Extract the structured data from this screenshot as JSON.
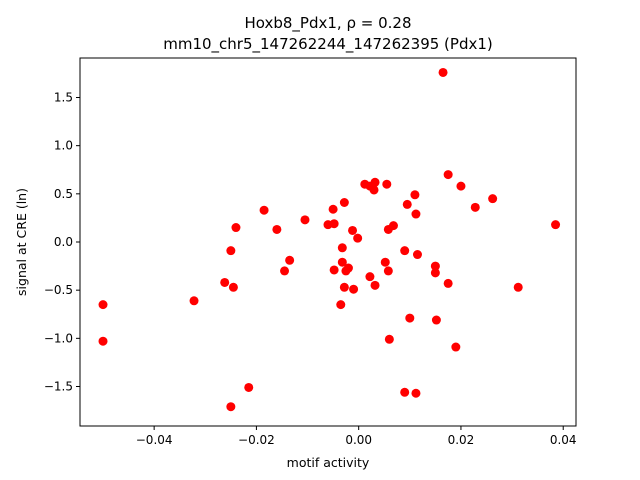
{
  "chart_data": {
    "type": "scatter",
    "title_line1": "Hoxb8_Pdx1, ρ = 0.28",
    "title_line2": "mm10_chr5_147262244_147262395 (Pdx1)",
    "xlabel": "motif activity",
    "ylabel": "signal at CRE (ln)",
    "xlim": [
      -0.0545,
      0.0425
    ],
    "ylim": [
      -1.91,
      1.91
    ],
    "xticks": [
      -0.04,
      -0.02,
      0.0,
      0.02,
      0.04
    ],
    "xtick_labels": [
      "−0.04",
      "−0.02",
      "0.00",
      "0.02",
      "0.04"
    ],
    "yticks": [
      -1.5,
      -1.0,
      -0.5,
      0.0,
      0.5,
      1.0,
      1.5
    ],
    "ytick_labels": [
      "−1.5",
      "−1.0",
      "−0.5",
      "0.0",
      "0.5",
      "1.0",
      "1.5"
    ],
    "grid": false,
    "marker_color": "#ff0000",
    "points": [
      {
        "x": -0.05,
        "y": -0.65
      },
      {
        "x": -0.05,
        "y": -1.03
      },
      {
        "x": -0.0322,
        "y": -0.61
      },
      {
        "x": -0.0262,
        "y": -0.42
      },
      {
        "x": -0.025,
        "y": -0.09
      },
      {
        "x": -0.025,
        "y": -1.71
      },
      {
        "x": -0.0245,
        "y": -0.47
      },
      {
        "x": -0.024,
        "y": 0.15
      },
      {
        "x": -0.0215,
        "y": -1.51
      },
      {
        "x": -0.0185,
        "y": 0.33
      },
      {
        "x": -0.016,
        "y": 0.13
      },
      {
        "x": -0.0145,
        "y": -0.3
      },
      {
        "x": -0.0135,
        "y": -0.19
      },
      {
        "x": -0.0105,
        "y": 0.23
      },
      {
        "x": -0.006,
        "y": 0.18
      },
      {
        "x": -0.005,
        "y": 0.34
      },
      {
        "x": -0.0048,
        "y": 0.19
      },
      {
        "x": -0.0048,
        "y": -0.29
      },
      {
        "x": -0.0035,
        "y": -0.65
      },
      {
        "x": -0.0032,
        "y": -0.06
      },
      {
        "x": -0.0032,
        "y": -0.21
      },
      {
        "x": -0.0028,
        "y": 0.41
      },
      {
        "x": -0.0028,
        "y": -0.47
      },
      {
        "x": -0.0025,
        "y": -0.3
      },
      {
        "x": -0.002,
        "y": -0.27
      },
      {
        "x": -0.0012,
        "y": 0.12
      },
      {
        "x": -0.001,
        "y": -0.49
      },
      {
        "x": -0.0002,
        "y": 0.04
      },
      {
        "x": 0.0012,
        "y": 0.6
      },
      {
        "x": 0.0022,
        "y": 0.58
      },
      {
        "x": 0.0022,
        "y": -0.36
      },
      {
        "x": 0.003,
        "y": 0.54
      },
      {
        "x": 0.0032,
        "y": 0.62
      },
      {
        "x": 0.0032,
        "y": -0.45
      },
      {
        "x": 0.0052,
        "y": -0.21
      },
      {
        "x": 0.0055,
        "y": 0.6
      },
      {
        "x": 0.0058,
        "y": 0.13
      },
      {
        "x": 0.0058,
        "y": -0.3
      },
      {
        "x": 0.006,
        "y": -1.01
      },
      {
        "x": 0.0068,
        "y": 0.17
      },
      {
        "x": 0.009,
        "y": -0.09
      },
      {
        "x": 0.009,
        "y": -1.56
      },
      {
        "x": 0.0095,
        "y": 0.39
      },
      {
        "x": 0.01,
        "y": -0.79
      },
      {
        "x": 0.011,
        "y": 0.49
      },
      {
        "x": 0.0112,
        "y": 0.29
      },
      {
        "x": 0.0115,
        "y": -0.13
      },
      {
        "x": 0.0112,
        "y": -1.57
      },
      {
        "x": 0.015,
        "y": -0.25
      },
      {
        "x": 0.015,
        "y": -0.32
      },
      {
        "x": 0.0152,
        "y": -0.81
      },
      {
        "x": 0.0165,
        "y": 1.76
      },
      {
        "x": 0.0175,
        "y": 0.7
      },
      {
        "x": 0.0175,
        "y": -0.43
      },
      {
        "x": 0.019,
        "y": -1.09
      },
      {
        "x": 0.02,
        "y": 0.58
      },
      {
        "x": 0.0228,
        "y": 0.36
      },
      {
        "x": 0.0262,
        "y": 0.45
      },
      {
        "x": 0.0312,
        "y": -0.47
      },
      {
        "x": 0.0385,
        "y": 0.18
      }
    ]
  }
}
